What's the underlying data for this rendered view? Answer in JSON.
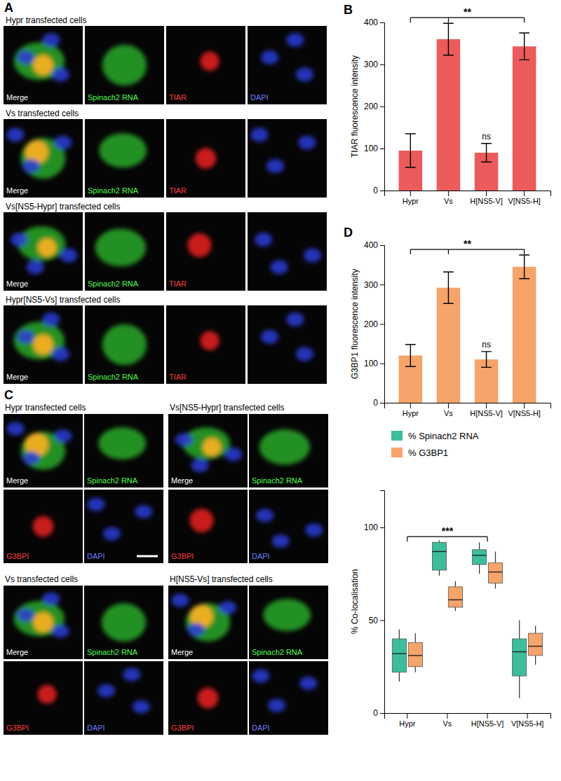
{
  "chart_data": [
    {
      "type": "bar",
      "panel": "B",
      "y_label": "TIAR fluorescence intensity",
      "categories": [
        "Hypr",
        "Vs",
        "H[NS5-V]",
        "V[NS5-H]"
      ],
      "values": [
        95,
        360,
        90,
        343
      ],
      "errors": [
        40,
        38,
        22,
        32
      ],
      "color": "#eb5b5b",
      "ylim": [
        0,
        400
      ],
      "yticks": [
        0,
        100,
        200,
        300,
        400
      ],
      "annotations": [
        {
          "text": "**",
          "categories": [
            0,
            1,
            3
          ]
        },
        {
          "text": "ns",
          "categories": [
            2
          ]
        }
      ]
    },
    {
      "type": "bar",
      "panel": "D",
      "y_label": "G3BP1 fluorescence intensity",
      "categories": [
        "Hypr",
        "Vs",
        "H[NS5-V]",
        "V[NS5-H]"
      ],
      "values": [
        120,
        292,
        110,
        345
      ],
      "errors": [
        28,
        40,
        20,
        30
      ],
      "color": "#f6a46a",
      "ylim": [
        0,
        400
      ],
      "yticks": [
        0,
        100,
        200,
        300,
        400
      ],
      "annotations": [
        {
          "text": "**",
          "categories": [
            0,
            1,
            3
          ]
        },
        {
          "text": "ns",
          "categories": [
            2
          ]
        }
      ]
    },
    {
      "type": "box",
      "y_label": "% Co-localisation",
      "legend": "top",
      "categories": [
        "Hypr",
        "Vs",
        "H[NS5-V]",
        "V[NS5-H]"
      ],
      "ylim": [
        0,
        120
      ],
      "yticks": [
        0,
        50,
        100
      ],
      "series": [
        {
          "name": "% Spinach2 RNA",
          "color": "#3dbd9c",
          "min": [
            17,
            74,
            75,
            8
          ],
          "q1": [
            22,
            77,
            80,
            20
          ],
          "median": [
            32,
            87,
            85,
            33
          ],
          "q3": [
            40,
            92,
            88,
            40
          ],
          "max": [
            45,
            93,
            92,
            50
          ]
        },
        {
          "name": "% G3BP1",
          "color": "#f6a46a",
          "min": [
            22,
            55,
            67,
            26
          ],
          "q1": [
            25,
            57,
            70,
            31
          ],
          "median": [
            31,
            61,
            76,
            36
          ],
          "q3": [
            38,
            68,
            81,
            43
          ],
          "max": [
            43,
            71,
            87,
            47
          ]
        }
      ],
      "annotations": [
        {
          "text": "***",
          "categories": [
            0,
            2
          ]
        }
      ]
    }
  ],
  "image_panels": [
    {
      "panel": "A",
      "rows": [
        {
          "title": "Hypr transfected cells",
          "labels": [
            "Merge",
            "Spinach2 RNA",
            "TIAR",
            "DAPI"
          ]
        },
        {
          "title": "Vs transfected cells",
          "labels": [
            "Merge",
            "Spinach2 RNA",
            "TIAR"
          ]
        },
        {
          "title": "Vs[NS5-Hypr] transfected cells",
          "labels": [
            "Merge",
            "Spinach2 RNA",
            "TIAR"
          ]
        },
        {
          "title": "Hypr[NS5-Vs] transfected cells",
          "labels": [
            "Merge",
            "Spinach2 RNA",
            "TIAR"
          ]
        }
      ]
    },
    {
      "panel": "C",
      "blocks": [
        {
          "title": "Hypr transfected cells",
          "labels": [
            "Merge",
            "Spinach2 RNA",
            "G3BPI",
            "DAPI"
          ]
        },
        {
          "title": "Vs[NS5-Hypr] transfected cells",
          "labels": [
            "Merge",
            "Spinach2 RNA",
            "G3BPI",
            "DAPI"
          ]
        },
        {
          "title": "Vs transfected cells",
          "labels": [
            "Merge",
            "Spinach2 RNA",
            "G3BPI",
            "DAPI"
          ]
        },
        {
          "title": "H[NS5-Vs] transfected cells",
          "labels": [
            "Merge",
            "Spinach2 RNA",
            "G3BPI",
            "DAPI"
          ]
        }
      ]
    }
  ]
}
